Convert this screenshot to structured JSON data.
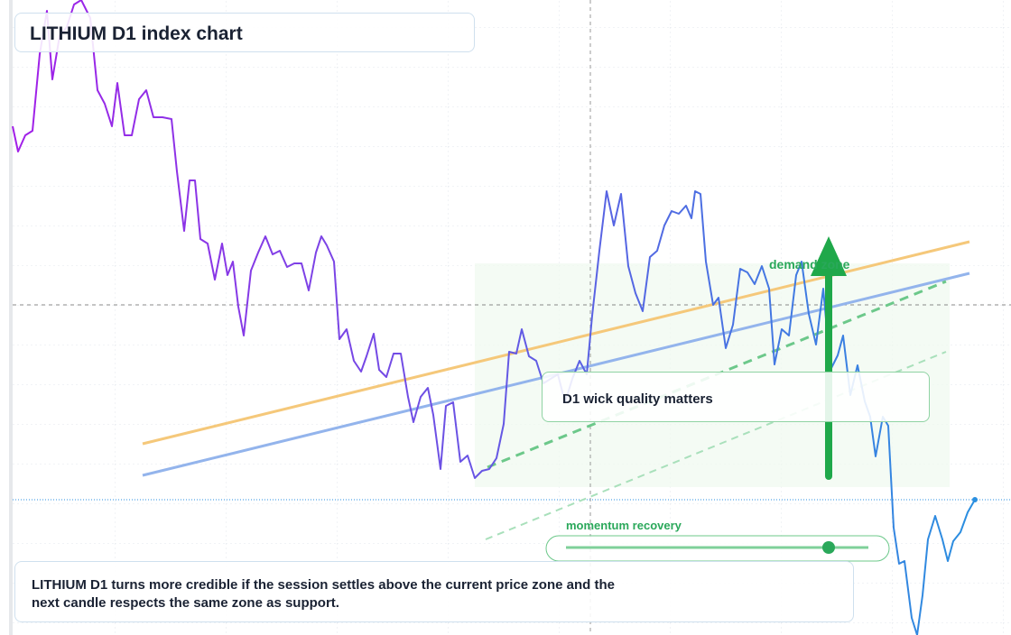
{
  "chart_data": {
    "type": "line",
    "title": "LITHIUM D1 index chart",
    "annotations": {
      "zone": "demand zone",
      "wick": "D1 wick quality matters",
      "momentum": "momentum recovery",
      "note": "LITHIUM D1 turns more credible if the session settles above the current price zone and the next candle respects the same zone as support."
    },
    "colors": [
      "#a21fe8",
      "#2a8fe0"
    ],
    "xlim": [
      14,
      1080
    ],
    "ylim": [
      0,
      704
    ],
    "x": [
      14,
      20,
      28,
      36,
      44,
      52,
      58,
      66,
      74,
      82,
      90,
      100,
      108,
      116,
      124,
      130,
      138,
      146,
      154,
      162,
      170,
      180,
      190,
      196,
      204,
      210,
      216,
      222,
      230,
      238,
      246,
      252,
      258,
      264,
      270,
      278,
      286,
      294,
      302,
      310,
      318,
      326,
      334,
      342,
      350,
      356,
      362,
      370,
      376,
      384,
      392,
      400,
      406,
      414,
      420,
      428,
      436,
      444,
      452,
      458,
      466,
      474,
      480,
      488,
      494,
      502,
      510,
      518,
      526,
      534,
      542,
      550,
      558,
      564,
      572,
      578,
      586,
      594,
      602,
      610,
      618,
      626,
      634,
      642,
      650,
      656,
      664,
      672,
      680,
      688,
      696,
      704,
      712,
      720,
      728,
      736,
      744,
      752,
      760,
      766,
      770,
      776,
      782,
      790,
      796,
      804,
      812,
      820,
      828,
      836,
      844,
      852,
      858,
      866,
      874,
      882,
      888,
      896,
      904,
      912,
      920,
      928,
      934,
      942,
      950,
      958,
      964,
      970,
      978,
      984,
      990,
      996,
      1002,
      1010,
      1016,
      1022,
      1028,
      1036,
      1044,
      1050,
      1056,
      1064,
      1072,
      1080
    ],
    "values": [
      564,
      536,
      554,
      559,
      644,
      692,
      616,
      664,
      674,
      699,
      704,
      684,
      604,
      589,
      564,
      612,
      554,
      554,
      594,
      604,
      574,
      574,
      572,
      514,
      448,
      504,
      504,
      439,
      434,
      394,
      434,
      399,
      414,
      364,
      332,
      404,
      424,
      442,
      422,
      426,
      408,
      412,
      412,
      382,
      424,
      442,
      432,
      414,
      328,
      339,
      304,
      292,
      309,
      334,
      294,
      286,
      312,
      312,
      264,
      236,
      264,
      274,
      244,
      184,
      254,
      258,
      192,
      199,
      174,
      182,
      184,
      196,
      234,
      314,
      312,
      339,
      309,
      304,
      279,
      284,
      289,
      258,
      284,
      304,
      289,
      354,
      426,
      492,
      454,
      489,
      409,
      379,
      359,
      419,
      426,
      454,
      470,
      467,
      476,
      462,
      492,
      489,
      414,
      366,
      374,
      318,
      344,
      406,
      402,
      389,
      409,
      384,
      300,
      339,
      332,
      399,
      414,
      356,
      322,
      384,
      294,
      310,
      332,
      266,
      299,
      259,
      242,
      198,
      242,
      232,
      119,
      79,
      82,
      19,
      0,
      44,
      106,
      132,
      106,
      82,
      104,
      114,
      136,
      150
    ]
  }
}
